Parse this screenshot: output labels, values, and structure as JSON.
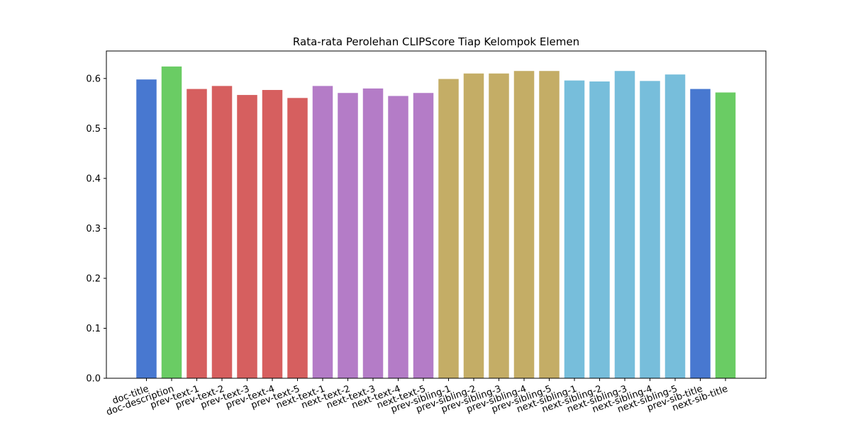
{
  "chart_data": {
    "type": "bar",
    "title": "Rata-rata Perolehan CLIPScore Tiap Kelompok Elemen",
    "xlabel": "",
    "ylabel": "",
    "ylim": [
      0,
      0.655
    ],
    "yticks": [
      0.0,
      0.1,
      0.2,
      0.3,
      0.4,
      0.5,
      0.6
    ],
    "ytick_labels": [
      "0.0",
      "0.1",
      "0.2",
      "0.3",
      "0.4",
      "0.5",
      "0.6"
    ],
    "grid": false,
    "legend": "none",
    "categories": [
      "doc-title",
      "doc-description",
      "prev-text-1",
      "prev-text-2",
      "prev-text-3",
      "prev-text-4",
      "prev-text-5",
      "next-text-1",
      "next-text-2",
      "next-text-3",
      "next-text-4",
      "next-text-5",
      "prev-sibling-1",
      "prev-sibling-2",
      "prev-sibling-3",
      "prev-sibling-4",
      "prev-sibling-5",
      "next-sibling-1",
      "next-sibling-2",
      "next-sibling-3",
      "next-sibling-4",
      "next-sibling-5",
      "prev-sib-title",
      "next-sib-title"
    ],
    "values": [
      0.598,
      0.624,
      0.579,
      0.585,
      0.567,
      0.577,
      0.561,
      0.585,
      0.571,
      0.58,
      0.565,
      0.571,
      0.599,
      0.61,
      0.61,
      0.615,
      0.615,
      0.596,
      0.594,
      0.615,
      0.595,
      0.608,
      0.579,
      0.572
    ],
    "colors": [
      "#4878d0",
      "#6acc64",
      "#d65f5f",
      "#d65f5f",
      "#d65f5f",
      "#d65f5f",
      "#d65f5f",
      "#b47cc7",
      "#b47cc7",
      "#b47cc7",
      "#b47cc7",
      "#b47cc7",
      "#c4ad66",
      "#c4ad66",
      "#c4ad66",
      "#c4ad66",
      "#c4ad66",
      "#77bedb",
      "#77bedb",
      "#77bedb",
      "#77bedb",
      "#77bedb",
      "#4878d0",
      "#6acc64"
    ]
  }
}
